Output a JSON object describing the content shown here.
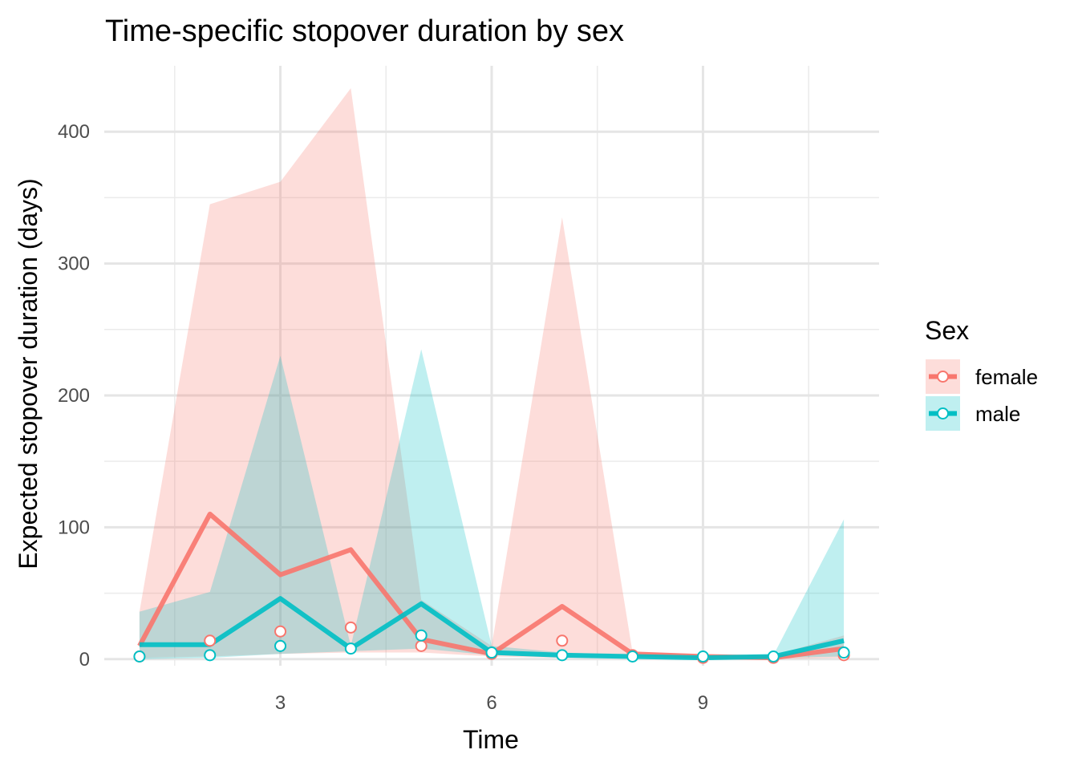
{
  "chart_data": {
    "type": "line",
    "title": "Time-specific stopover duration by sex",
    "xlabel": "Time",
    "ylabel": "Expected stopover duration (days)",
    "xlim": [
      0.5,
      11.5
    ],
    "ylim": [
      -5,
      450
    ],
    "x_ticks": [
      3,
      6,
      9
    ],
    "x_minor": [
      1.5,
      4.5,
      7.5,
      10.5
    ],
    "y_ticks": [
      0,
      100,
      200,
      300,
      400
    ],
    "y_minor": [
      50,
      150,
      250,
      350
    ],
    "grid": true,
    "legend": {
      "title": "Sex",
      "placement": "right"
    },
    "x": [
      1,
      2,
      3,
      4,
      5,
      6,
      7,
      8,
      9,
      10,
      11
    ],
    "series": [
      {
        "name": "female",
        "color": "#F8766D",
        "line": [
          10,
          110,
          64,
          83,
          15,
          4,
          40,
          4,
          2,
          1,
          8
        ],
        "points": [
          2,
          14,
          21,
          24,
          10,
          4,
          14,
          3,
          1,
          1,
          3
        ],
        "lower": [
          1,
          2,
          4,
          5,
          5,
          2,
          1,
          1,
          0,
          0,
          1
        ],
        "upper": [
          36,
          345,
          362,
          433,
          45,
          10,
          335,
          5,
          4,
          3,
          18
        ]
      },
      {
        "name": "male",
        "color": "#00BFC4",
        "line": [
          11,
          11,
          46,
          8,
          42,
          5,
          3,
          2,
          1,
          2,
          14
        ],
        "points": [
          2,
          3,
          10,
          8,
          18,
          5,
          3,
          2,
          2,
          2,
          5
        ],
        "lower": [
          0,
          1,
          4,
          6,
          8,
          3,
          2,
          1,
          0,
          1,
          2
        ],
        "upper": [
          36,
          51,
          230,
          10,
          235,
          10,
          5,
          3,
          2,
          3,
          106
        ]
      }
    ]
  }
}
